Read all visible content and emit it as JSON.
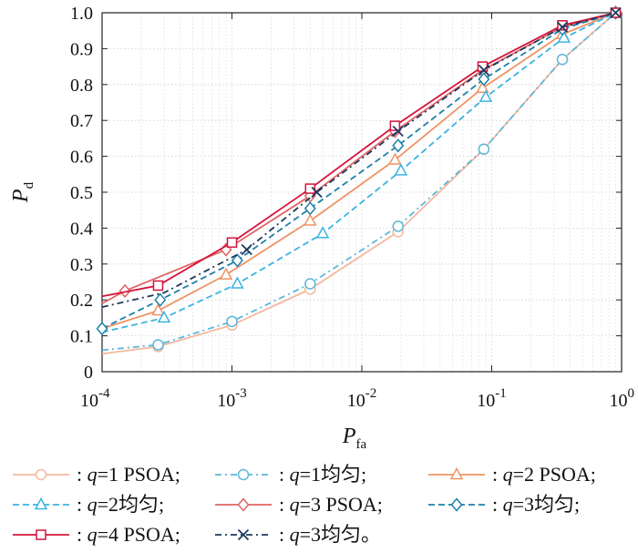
{
  "chart_data": {
    "type": "line",
    "x_scale": "log",
    "xlim": [
      0.0001,
      1
    ],
    "ylim": [
      0,
      1
    ],
    "grid": true,
    "legend_position": "bottom",
    "x_ticks": [
      {
        "value": 0.0001,
        "base": "10",
        "exp": "-4"
      },
      {
        "value": 0.001,
        "base": "10",
        "exp": "-3"
      },
      {
        "value": 0.01,
        "base": "10",
        "exp": "-2"
      },
      {
        "value": 0.1,
        "base": "10",
        "exp": "-1"
      },
      {
        "value": 1,
        "base": "10",
        "exp": "0"
      }
    ],
    "y_ticks": [
      {
        "value": 0,
        "label": "0"
      },
      {
        "value": 0.1,
        "label": "0.1"
      },
      {
        "value": 0.2,
        "label": "0.2"
      },
      {
        "value": 0.3,
        "label": "0.3"
      },
      {
        "value": 0.4,
        "label": "0.4"
      },
      {
        "value": 0.5,
        "label": "0.5"
      },
      {
        "value": 0.6,
        "label": "0.6"
      },
      {
        "value": 0.7,
        "label": "0.7"
      },
      {
        "value": 0.8,
        "label": "0.8"
      },
      {
        "value": 0.9,
        "label": "0.9"
      },
      {
        "value": 1.0,
        "label": "1.0"
      }
    ],
    "xlabel": {
      "main": "P",
      "sub": "fa"
    },
    "ylabel": {
      "main": "P",
      "sub": "d"
    },
    "series": [
      {
        "name": "q=1 PSOA",
        "legend_q": "q",
        "legend_rest": "=1 PSOA;",
        "color": "#f4b8a0",
        "dash": "solid",
        "marker": "circle",
        "x": [
          0.0001,
          0.00027,
          0.001,
          0.004,
          0.019,
          0.087,
          0.35,
          0.9
        ],
        "y": [
          0.05,
          0.07,
          0.13,
          0.23,
          0.39,
          0.62,
          0.87,
          1.0
        ],
        "marker_idx": [
          1,
          2,
          3,
          4,
          5,
          6,
          7
        ]
      },
      {
        "name": "q=1均匀",
        "legend_q": "q",
        "legend_rest": "=1均匀;",
        "color": "#5bb8d8",
        "dash": "dashdot",
        "marker": "circle",
        "x": [
          0.0001,
          0.00027,
          0.001,
          0.004,
          0.019,
          0.087,
          0.35,
          0.9
        ],
        "y": [
          0.06,
          0.075,
          0.14,
          0.245,
          0.405,
          0.62,
          0.87,
          1.0
        ],
        "marker_idx": [
          1,
          2,
          3,
          4,
          5,
          6,
          7
        ]
      },
      {
        "name": "q=2 PSOA",
        "legend_q": "q",
        "legend_rest": "=2 PSOA;",
        "color": "#ee9466",
        "dash": "solid",
        "marker": "triangle",
        "x": [
          0.0001,
          0.00027,
          0.0009,
          0.004,
          0.018,
          0.085,
          0.35,
          0.9
        ],
        "y": [
          0.12,
          0.17,
          0.27,
          0.42,
          0.59,
          0.79,
          0.94,
          1.0
        ],
        "marker_idx": [
          1,
          2,
          3,
          4,
          5,
          6,
          7
        ]
      },
      {
        "name": "q=2均匀",
        "legend_q": "q",
        "legend_rest": "=2均匀;",
        "color": "#3ab4e0",
        "dash": "dashed",
        "marker": "triangle",
        "x": [
          0.0001,
          0.0003,
          0.0011,
          0.005,
          0.02,
          0.09,
          0.36,
          0.9
        ],
        "y": [
          0.11,
          0.15,
          0.245,
          0.385,
          0.56,
          0.765,
          0.93,
          1.0
        ],
        "marker_idx": [
          1,
          2,
          3,
          4,
          5,
          6,
          7
        ]
      },
      {
        "name": "q=3 PSOA",
        "legend_q": "q",
        "legend_rest": "=3 PSOA;",
        "color": "#e06464",
        "dash": "solid",
        "marker": "diamond",
        "x": [
          0.0001,
          0.00015,
          0.0009,
          0.004,
          0.018,
          0.085,
          0.35,
          0.9
        ],
        "y": [
          0.19,
          0.225,
          0.34,
          0.49,
          0.67,
          0.84,
          0.96,
          1.0
        ],
        "marker_idx": [
          1,
          2,
          3,
          4,
          5,
          6,
          7
        ]
      },
      {
        "name": "q=3均匀",
        "legend_q": "q",
        "legend_rest": "=3均匀;",
        "color": "#1e80a8",
        "dash": "dashed",
        "marker": "diamond",
        "x": [
          0.0001,
          0.00028,
          0.0011,
          0.004,
          0.019,
          0.087,
          0.35,
          0.9
        ],
        "y": [
          0.12,
          0.2,
          0.31,
          0.455,
          0.63,
          0.815,
          0.955,
          1.0
        ],
        "marker_idx": [
          0,
          1,
          2,
          3,
          4,
          5,
          6,
          7
        ]
      },
      {
        "name": "q=4 PSOA",
        "legend_q": "q",
        "legend_rest": "=4 PSOA;",
        "color": "#d4143c",
        "dash": "solid",
        "marker": "square",
        "x": [
          0.0001,
          0.00027,
          0.001,
          0.004,
          0.018,
          0.085,
          0.35,
          0.9
        ],
        "y": [
          0.21,
          0.24,
          0.36,
          0.51,
          0.685,
          0.85,
          0.965,
          1.0
        ],
        "marker_idx": [
          1,
          2,
          3,
          4,
          5,
          6,
          7
        ]
      },
      {
        "name": "q=3均匀。",
        "legend_q": "q",
        "legend_rest": "=3均匀。",
        "color": "#1e3a5c",
        "dash": "dashdot",
        "marker": "x",
        "x": [
          0.0001,
          0.0003,
          0.0013,
          0.0045,
          0.019,
          0.087,
          0.35,
          0.9
        ],
        "y": [
          0.18,
          0.22,
          0.34,
          0.5,
          0.67,
          0.84,
          0.96,
          1.0
        ],
        "marker_idx": [
          2,
          3,
          4,
          5,
          6,
          7
        ]
      }
    ]
  }
}
